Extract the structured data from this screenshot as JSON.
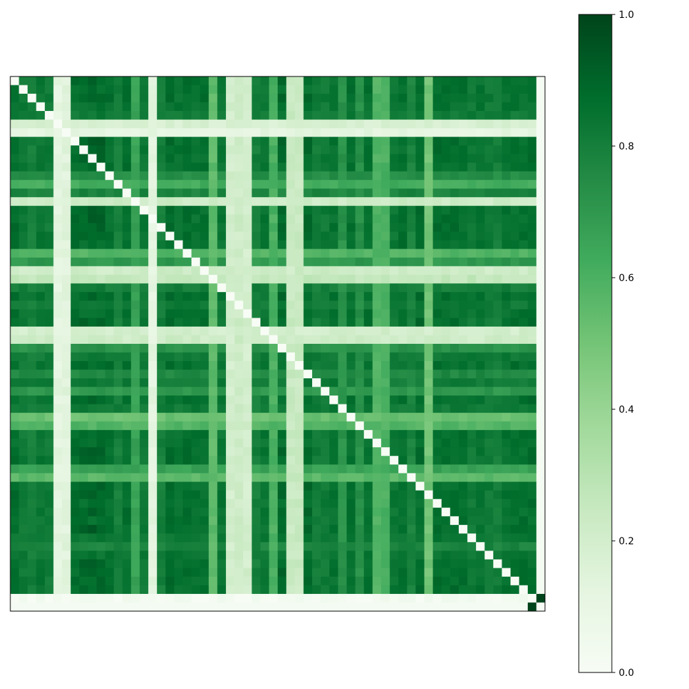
{
  "chart_data": {
    "type": "heatmap",
    "size": 62,
    "colormap": "Greens",
    "vmin": 0.0,
    "vmax": 1.0,
    "x_ticks": [],
    "y_ticks": [],
    "colorbar": {
      "ticks": [
        0.0,
        0.2,
        0.4,
        0.6,
        0.8,
        1.0
      ],
      "tick_labels": [
        "0.0",
        "0.2",
        "0.4",
        "0.6",
        "0.8",
        "1.0"
      ]
    },
    "diagonal_value": 0.0,
    "last_row_col_value": 0.02,
    "last_pair_value": 1.0,
    "column_level": [
      0.87,
      0.82,
      0.8,
      0.84,
      0.82,
      0.12,
      0.14,
      0.87,
      0.89,
      0.92,
      0.91,
      0.86,
      0.8,
      0.87,
      0.66,
      0.83,
      0.12,
      0.8,
      0.88,
      0.85,
      0.87,
      0.85,
      0.86,
      0.55,
      0.84,
      0.2,
      0.22,
      0.2,
      0.8,
      0.84,
      0.6,
      0.89,
      0.24,
      0.24,
      0.88,
      0.81,
      0.82,
      0.85,
      0.72,
      0.86,
      0.73,
      0.86,
      0.58,
      0.6,
      0.83,
      0.86,
      0.78,
      0.88,
      0.5,
      0.87,
      0.86,
      0.87,
      0.86,
      0.82,
      0.85,
      0.82,
      0.81,
      0.85,
      0.86,
      0.86,
      0.87,
      0.02
    ],
    "row_level": [
      0.9,
      0.86,
      0.88,
      0.85,
      0.82,
      0.18,
      0.12,
      0.92,
      0.93,
      0.91,
      0.86,
      0.74,
      0.62,
      0.78,
      0.22,
      0.91,
      0.92,
      0.9,
      0.88,
      0.86,
      0.58,
      0.7,
      0.22,
      0.26,
      0.8,
      0.88,
      0.82,
      0.86,
      0.9,
      0.2,
      0.22,
      0.72,
      0.82,
      0.86,
      0.76,
      0.82,
      0.7,
      0.88,
      0.82,
      0.52,
      0.58,
      0.86,
      0.86,
      0.9,
      0.88,
      0.66,
      0.56,
      0.9,
      0.9,
      0.86,
      0.9,
      0.86,
      0.92,
      0.84,
      0.78,
      0.84,
      0.9,
      0.9,
      0.88,
      0.88,
      0.02,
      0.02
    ]
  }
}
